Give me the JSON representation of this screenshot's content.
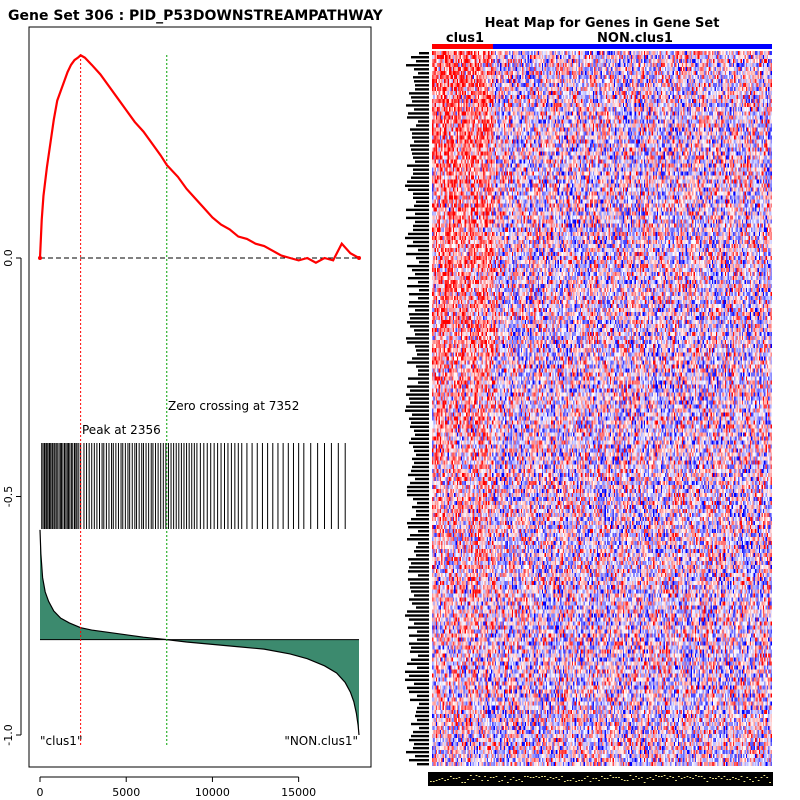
{
  "left_panel": {
    "title": "Gene Set  306 : PID_P53DOWNSTREAMPATHWAY",
    "peak_label": "Peak at 2356",
    "zero_label": "Zero crossing at 7352",
    "left_class_label": "\"clus1\"",
    "right_class_label": "\"NON.clus1\""
  },
  "right_panel": {
    "title": "Heat Map for Genes in Gene Set",
    "group1_label": "clus1",
    "group2_label": "NON.clus1"
  },
  "colors": {
    "es_curve": "#ff0000",
    "peak_line": "#ff0000",
    "zero_line": "#00a000",
    "ranked_fill": "#3c8a6e",
    "heat_high": "#ff0000",
    "heat_low": "#0000ff",
    "group1_bar": "#ff0000",
    "group2_bar": "#0000ff"
  },
  "chart_data": [
    {
      "type": "line",
      "name": "enrichment-plot",
      "xlim": [
        0,
        18500
      ],
      "ylim": [
        -1.0,
        0.45
      ],
      "x_ticks": [
        0,
        5000,
        10000,
        15000
      ],
      "y_ticks": [
        0.0,
        -0.5,
        -1.0
      ],
      "y_tick_labels": [
        "0.0",
        "-0.5",
        "-1.0"
      ],
      "peak_position": 2356,
      "zero_crossing": 7352,
      "es_curve": {
        "x": [
          0,
          100,
          200,
          400,
          600,
          800,
          1000,
          1200,
          1400,
          1600,
          1800,
          2000,
          2200,
          2356,
          2600,
          3000,
          3500,
          4000,
          4500,
          5000,
          5500,
          6000,
          6500,
          7000,
          7352,
          8000,
          8500,
          9000,
          9500,
          10000,
          10500,
          11000,
          11500,
          12000,
          12500,
          13000,
          13500,
          14000,
          14500,
          15000,
          15500,
          16000,
          16500,
          17000,
          17500,
          18000,
          18500
        ],
        "y": [
          0.0,
          0.08,
          0.13,
          0.19,
          0.24,
          0.29,
          0.33,
          0.35,
          0.37,
          0.39,
          0.405,
          0.415,
          0.42,
          0.425,
          0.42,
          0.405,
          0.385,
          0.36,
          0.335,
          0.31,
          0.285,
          0.265,
          0.24,
          0.215,
          0.195,
          0.17,
          0.145,
          0.125,
          0.105,
          0.085,
          0.07,
          0.06,
          0.045,
          0.04,
          0.03,
          0.025,
          0.015,
          0.005,
          0.0,
          -0.005,
          0.0,
          -0.01,
          0.0,
          -0.005,
          0.03,
          0.01,
          0.0
        ]
      },
      "hit_positions": [
        100,
        180,
        260,
        340,
        400,
        470,
        550,
        620,
        700,
        760,
        850,
        930,
        1000,
        1100,
        1180,
        1250,
        1330,
        1420,
        1500,
        1580,
        1650,
        1730,
        1820,
        1900,
        2000,
        2080,
        2150,
        2250,
        2356,
        2550,
        2700,
        2850,
        3000,
        3150,
        3300,
        3450,
        3600,
        3700,
        3850,
        4000,
        4150,
        4250,
        4400,
        4550,
        4700,
        4800,
        4950,
        5100,
        5200,
        5350,
        5500,
        5600,
        5750,
        5900,
        6000,
        6150,
        6300,
        6450,
        6550,
        6700,
        6850,
        7000,
        7150,
        7300,
        7450,
        7600,
        7750,
        7900,
        8050,
        8200,
        8350,
        8500,
        8650,
        8800,
        8950,
        9100,
        9300,
        9500,
        9700,
        9900,
        10100,
        10300,
        10500,
        10700,
        10900,
        11100,
        11300,
        11500,
        11700,
        12000,
        12300,
        12600,
        12900,
        13200,
        13500,
        13800,
        14100,
        14400,
        14700,
        15000,
        15300,
        15700,
        16100,
        16500,
        16900,
        17300,
        17700
      ],
      "ranked_metric": {
        "x": [
          0,
          50,
          150,
          300,
          500,
          800,
          1200,
          1700,
          2356,
          3000,
          4000,
          5000,
          6000,
          7352,
          8500,
          10000,
          11500,
          13000,
          14500,
          15500,
          16500,
          17200,
          17700,
          18000,
          18200,
          18350,
          18450,
          18500
        ],
        "y": [
          -0.57,
          -0.62,
          -0.67,
          -0.7,
          -0.72,
          -0.74,
          -0.755,
          -0.765,
          -0.775,
          -0.78,
          -0.785,
          -0.79,
          -0.795,
          -0.8,
          -0.805,
          -0.81,
          -0.815,
          -0.82,
          -0.83,
          -0.84,
          -0.855,
          -0.87,
          -0.89,
          -0.91,
          -0.93,
          -0.955,
          -0.98,
          -1.0
        ]
      }
    },
    {
      "type": "heatmap",
      "name": "gene-set-heatmap",
      "title": "Heat Map for Genes in Gene Set",
      "groups": [
        "clus1",
        "NON.clus1"
      ],
      "group1_fraction": 0.18,
      "n_rows": 178,
      "n_columns": 260,
      "color_scale": [
        "#0000ff",
        "#ffffff",
        "#ff0000"
      ]
    }
  ]
}
